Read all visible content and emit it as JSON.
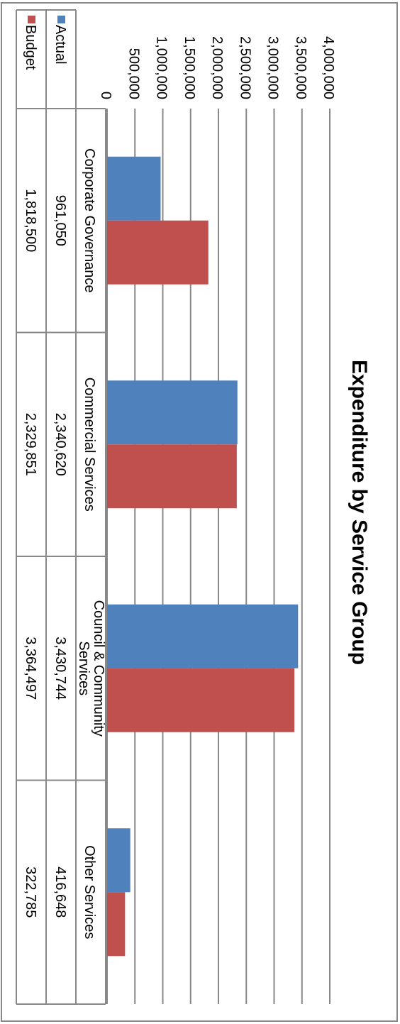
{
  "chart_data": {
    "type": "bar",
    "title": "Expenditure by Service Group",
    "categories": [
      [
        "Corporate Governance"
      ],
      [
        "Commercial Services"
      ],
      [
        "Council & Community",
        "Services"
      ],
      [
        "Other Services"
      ]
    ],
    "series": [
      {
        "name": "Actual",
        "color": "#4f81bd",
        "values": [
          961050,
          2340620,
          3430744,
          416648
        ],
        "labels": [
          "961,050",
          "2,340,620",
          "3,430,744",
          "416,648"
        ]
      },
      {
        "name": "Budget",
        "color": "#c0504d",
        "values": [
          1818500,
          2329851,
          3364497,
          322785
        ],
        "labels": [
          "1,818,500",
          "2,329,851",
          "3,364,497",
          "322,785"
        ]
      }
    ],
    "ylim": [
      0,
      4000000
    ],
    "yticks": [
      "0",
      "500,000",
      "1,000,000",
      "1,500,000",
      "2,000,000",
      "2,500,000",
      "3,000,000",
      "3,500,000",
      "4,000,000"
    ],
    "grid": true,
    "legend": "data-table",
    "orientation": "rotated-90"
  }
}
